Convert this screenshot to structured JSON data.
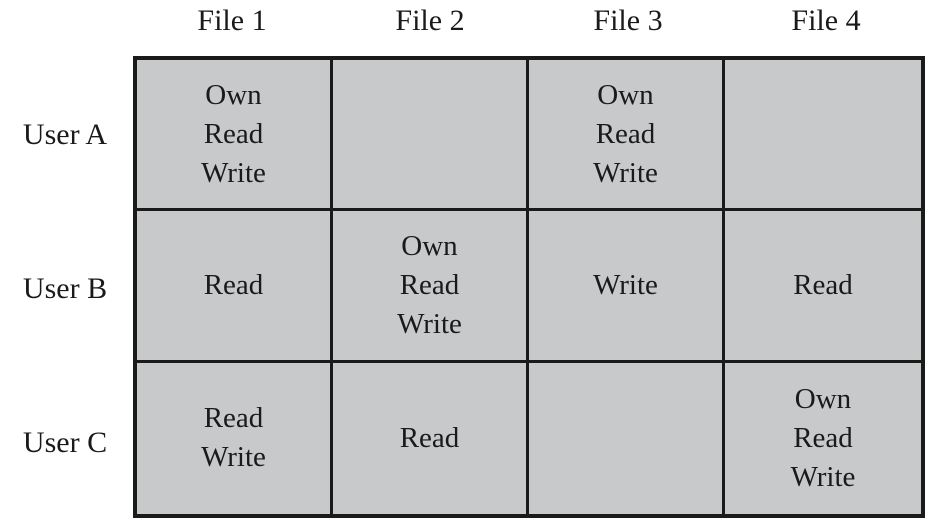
{
  "columns": [
    "File 1",
    "File 2",
    "File 3",
    "File 4"
  ],
  "rows": [
    {
      "label": "User A",
      "cells": [
        [
          "Own",
          "Read",
          "Write"
        ],
        [],
        [
          "Own",
          "Read",
          "Write"
        ],
        []
      ]
    },
    {
      "label": "User B",
      "cells": [
        [
          "Read"
        ],
        [
          "Own",
          "Read",
          "Write"
        ],
        [
          "Write"
        ],
        [
          "Read"
        ]
      ]
    },
    {
      "label": "User C",
      "cells": [
        [
          "Read",
          "Write"
        ],
        [
          "Read"
        ],
        [],
        [
          "Own",
          "Read",
          "Write"
        ]
      ]
    }
  ],
  "colors": {
    "cell_fill": "#c8c9cb",
    "grid_lines": "#1a1a1a"
  }
}
